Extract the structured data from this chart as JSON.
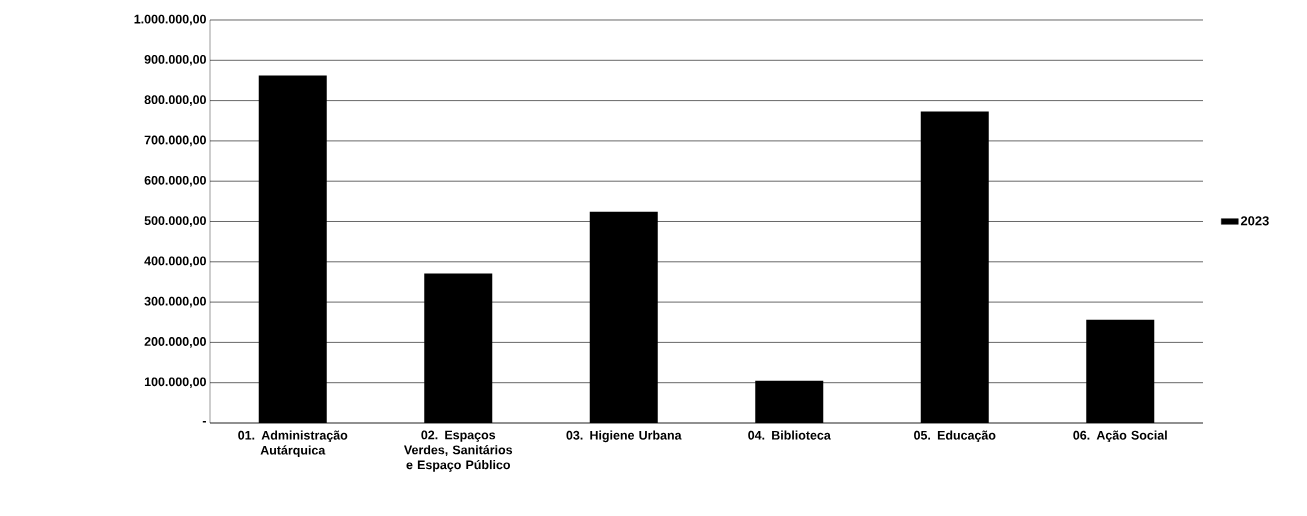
{
  "chart_data": {
    "type": "bar",
    "categories": [
      "01. Administração Autárquica",
      "02. Espaços Verdes, Sanitários e Espaço Público",
      "03. Higiene Urbana",
      "04. Biblioteca",
      "05. Educação",
      "06. Ação Social"
    ],
    "series": [
      {
        "name": "2023",
        "color": "#000000",
        "values": [
          862000,
          371000,
          524000,
          105000,
          773000,
          256000
        ]
      }
    ],
    "ylim": [
      0,
      1000000
    ],
    "yticks": [
      {
        "value": 0,
        "label": "-"
      },
      {
        "value": 100000,
        "label": "100.000,00"
      },
      {
        "value": 200000,
        "label": "200.000,00"
      },
      {
        "value": 300000,
        "label": "300.000,00"
      },
      {
        "value": 400000,
        "label": "400.000,00"
      },
      {
        "value": 500000,
        "label": "500.000,00"
      },
      {
        "value": 600000,
        "label": "600.000,00"
      },
      {
        "value": 700000,
        "label": "700.000,00"
      },
      {
        "value": 800000,
        "label": "800.000,00"
      },
      {
        "value": 900000,
        "label": "900.000,00"
      },
      {
        "value": 1000000,
        "label": "1.000.000,00"
      }
    ],
    "grid": "y",
    "legend": "right"
  }
}
